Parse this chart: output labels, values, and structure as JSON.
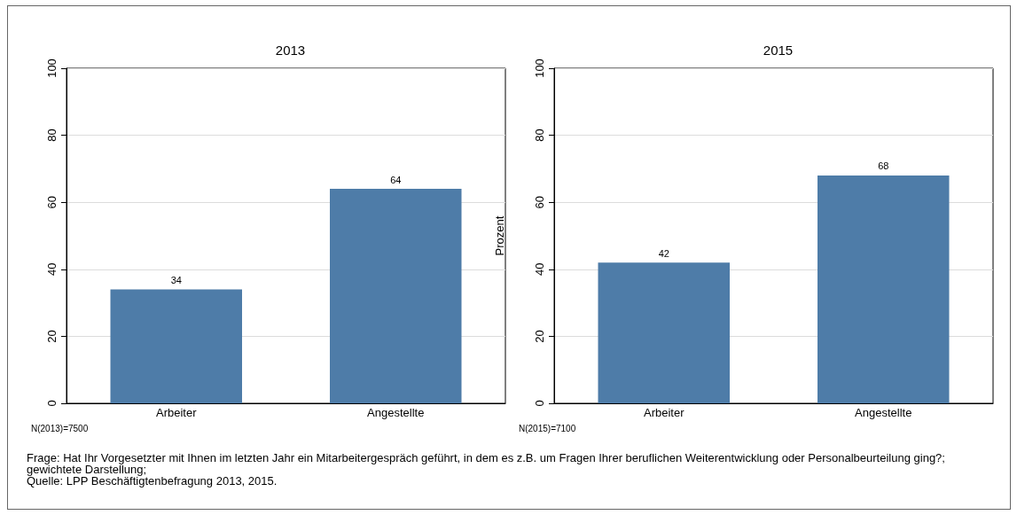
{
  "chart_data": [
    {
      "type": "bar",
      "title": "2013",
      "categories": [
        "Arbeiter",
        "Angestellte"
      ],
      "values": [
        34,
        64
      ],
      "color": "#4e7ca8",
      "ylim": [
        0,
        100
      ],
      "yticks": [
        0,
        20,
        40,
        60,
        80,
        100
      ],
      "grid": "y",
      "data_labels": true,
      "annotations": [
        "N(2013)=7500",
        "Frage: Hat Ihr Vorgesetzter mit Ihnen im letzten Jahr ein Mitarbeitergespräch geführt, in dem es z.B. um Fragen Ihrer beruflichen Weiterentwicklung oder Personalbeurteilung ging?; gewichtete Darstellung;",
        "Quelle: LPP Beschäftigtenbefragung 2013, 2015."
      ]
    },
    {
      "type": "bar",
      "title": "2015",
      "ylabel": "Prozent",
      "categories": [
        "Arbeiter",
        "Angestellte"
      ],
      "values": [
        42,
        68
      ],
      "color": "#4e7ca8",
      "ylim": [
        0,
        100
      ],
      "yticks": [
        0,
        20,
        40,
        60,
        80,
        100
      ],
      "grid": "y",
      "data_labels": true,
      "annotations": [
        "N(2015)=7100"
      ]
    }
  ]
}
